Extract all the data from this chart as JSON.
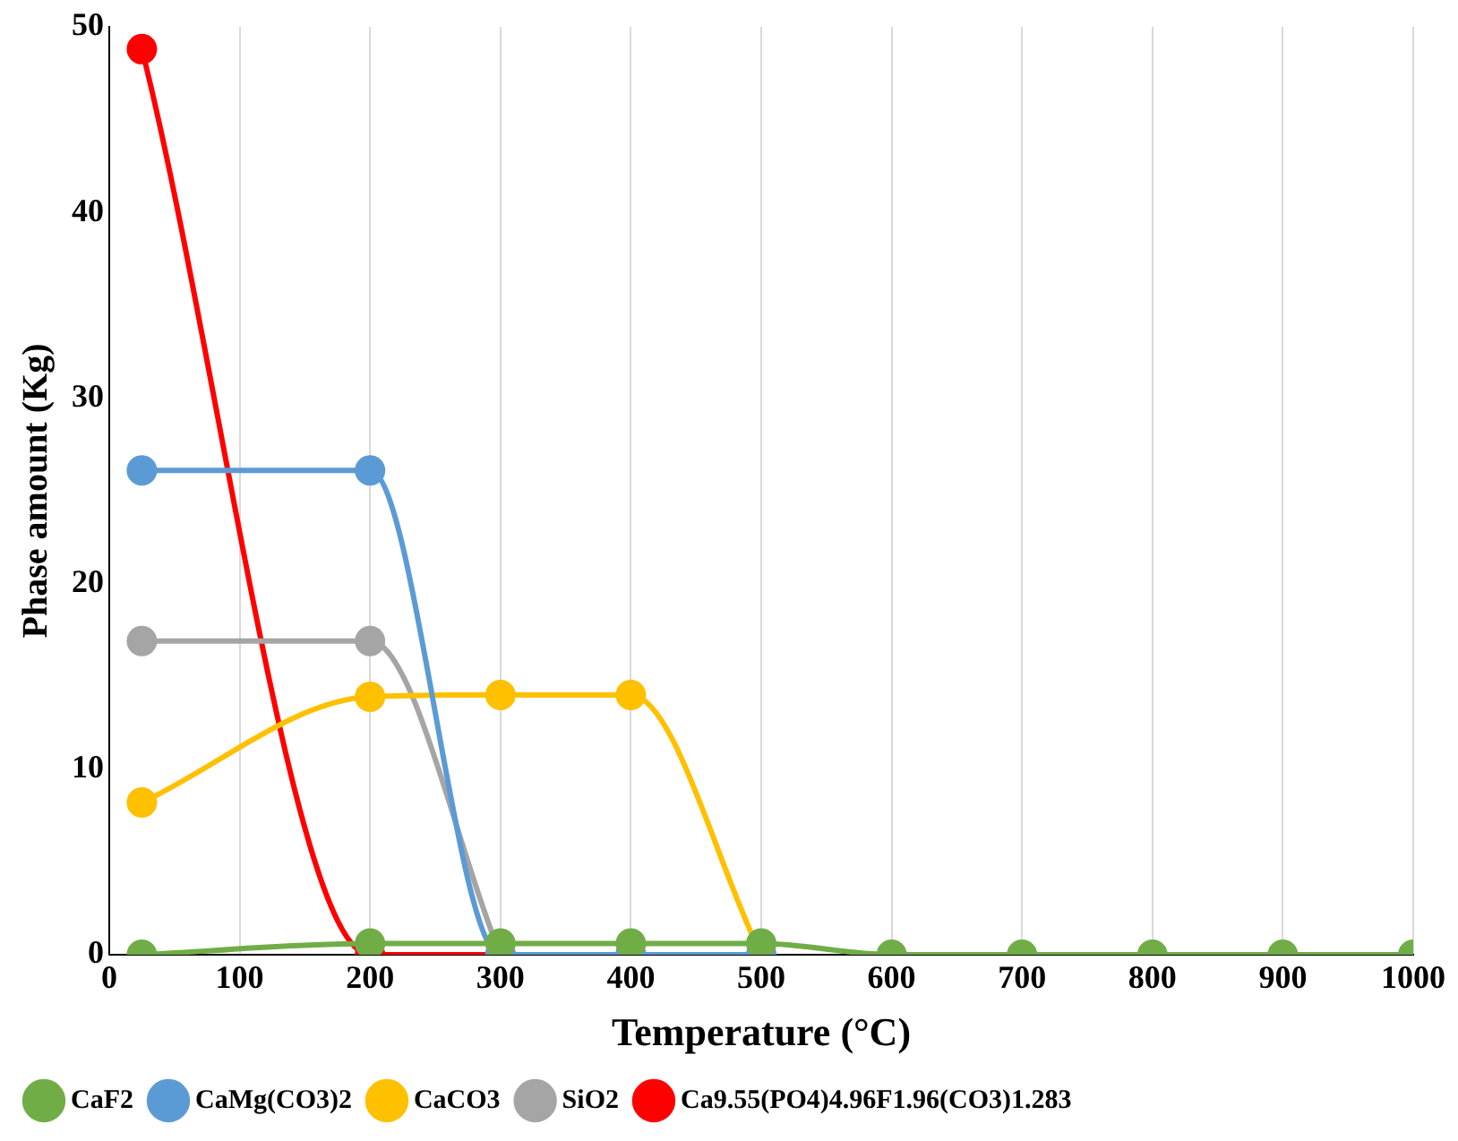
{
  "chart_data": {
    "type": "line",
    "xlabel": "Temperature (°C)",
    "ylabel": "Phase amount (Kg)",
    "x": [
      25,
      200,
      300,
      400,
      500,
      600,
      700,
      800,
      900,
      1000
    ],
    "series": [
      {
        "name": "Ca9.55(PO4)4.96F1.96(CO3)1.283",
        "color": "#ff0000",
        "values": [
          48.8,
          0,
          0,
          0,
          null,
          null,
          null,
          null,
          null,
          null
        ]
      },
      {
        "name": "SiO2",
        "color": "#a5a5a5",
        "values": [
          16.9,
          16.9,
          0,
          null,
          null,
          null,
          null,
          null,
          null,
          null
        ]
      },
      {
        "name": "CaCO3",
        "color": "#ffc000",
        "values": [
          8.2,
          13.9,
          14,
          14,
          0,
          null,
          null,
          null,
          null,
          null
        ]
      },
      {
        "name": "CaMg(CO3)2",
        "color": "#5b9bd5",
        "values": [
          26.1,
          26.1,
          0,
          0,
          0,
          null,
          null,
          null,
          null,
          null
        ]
      },
      {
        "name": "CaF2",
        "color": "#70ad47",
        "values": [
          0,
          0.6,
          0.6,
          0.6,
          0.6,
          0,
          0,
          0,
          0,
          0
        ]
      }
    ],
    "xlim": [
      0,
      1000
    ],
    "xticks": [
      0,
      100,
      200,
      300,
      400,
      500,
      600,
      700,
      800,
      900,
      1000
    ],
    "ylim": [
      0,
      50
    ],
    "yticks": [
      0,
      10,
      20,
      30,
      40,
      50
    ],
    "grid": "x",
    "legend": "bottom",
    "marker": "circle",
    "line_style": "solid"
  }
}
